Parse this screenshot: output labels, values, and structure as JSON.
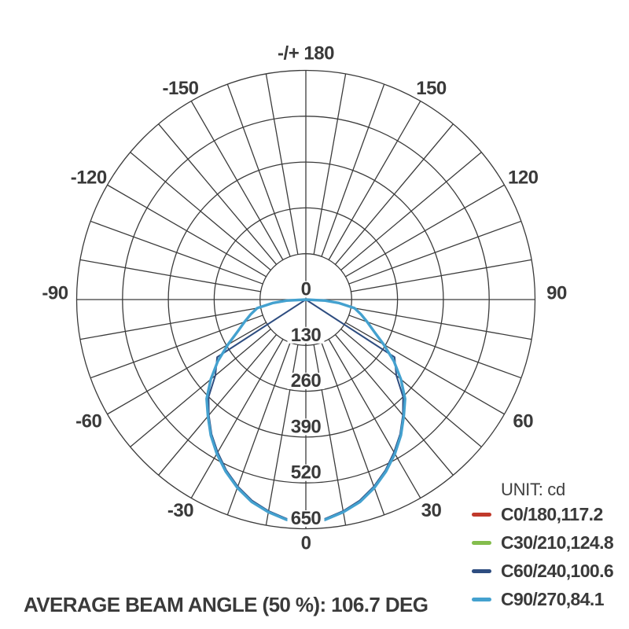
{
  "colors": {
    "background": "#ffffff",
    "grid": "#3b3b3b",
    "text": "#3a3a3a"
  },
  "chart_data": {
    "type": "line",
    "subtype": "polar-photometric-luminous-intensity",
    "top_label": "-/+ 180",
    "unit_label": "UNIT: cd",
    "footer": "AVERAGE BEAM ANGLE (50 %): 106.7 DEG",
    "angle_unit": "deg",
    "angle_tick_step": 10,
    "angle_label_step": 30,
    "angle_labels": [
      {
        "angle": -150,
        "label": "-150"
      },
      {
        "angle": -120,
        "label": "-120"
      },
      {
        "angle": -90,
        "label": "-90"
      },
      {
        "angle": -60,
        "label": "-60"
      },
      {
        "angle": -30,
        "label": "-30"
      },
      {
        "angle": 0,
        "label": "0"
      },
      {
        "angle": 30,
        "label": "30"
      },
      {
        "angle": 60,
        "label": "60"
      },
      {
        "angle": 90,
        "label": "90"
      },
      {
        "angle": 120,
        "label": "120"
      },
      {
        "angle": 150,
        "label": "150"
      }
    ],
    "radial_ticks": [
      {
        "value": 0,
        "label": "0"
      },
      {
        "value": 130,
        "label": "130"
      },
      {
        "value": 260,
        "label": "260"
      },
      {
        "value": 390,
        "label": "390"
      },
      {
        "value": 520,
        "label": "520"
      },
      {
        "value": 650,
        "label": "650"
      }
    ],
    "radial_max": 650,
    "series": [
      {
        "name": "C0/180",
        "label": "C0/180,117.2",
        "beam_angle_deg": 117.2,
        "color": "#c0392b",
        "stroke_width": 2,
        "symmetric": true,
        "points": [
          [
            0,
            632
          ],
          [
            5,
            627
          ],
          [
            10,
            612
          ],
          [
            15,
            594
          ],
          [
            20,
            568
          ],
          [
            25,
            538
          ],
          [
            30,
            505
          ],
          [
            35,
            470
          ],
          [
            40,
            432
          ],
          [
            45,
            398
          ],
          [
            50,
            352
          ],
          [
            55,
            305
          ],
          [
            60,
            255
          ],
          [
            65,
            213
          ],
          [
            70,
            185
          ],
          [
            75,
            162
          ],
          [
            80,
            140
          ],
          [
            84,
            95
          ],
          [
            87,
            55
          ],
          [
            90,
            0
          ]
        ]
      },
      {
        "name": "C30/210",
        "label": "C30/210,124.8",
        "beam_angle_deg": 124.8,
        "color": "#84bd4d",
        "stroke_width": 2,
        "symmetric": true,
        "points": [
          [
            0,
            632
          ],
          [
            5,
            627
          ],
          [
            10,
            612
          ],
          [
            15,
            594
          ],
          [
            20,
            568
          ],
          [
            25,
            538
          ],
          [
            30,
            505
          ],
          [
            35,
            470
          ],
          [
            40,
            432
          ],
          [
            45,
            398
          ],
          [
            50,
            352
          ],
          [
            55,
            305
          ],
          [
            60,
            255
          ],
          [
            65,
            213
          ],
          [
            70,
            185
          ],
          [
            75,
            162
          ],
          [
            80,
            140
          ],
          [
            84,
            95
          ],
          [
            87,
            55
          ],
          [
            90,
            0
          ]
        ]
      },
      {
        "name": "C60/240",
        "label": "C60/240,100.6",
        "beam_angle_deg": 100.6,
        "color": "#2e4d80",
        "stroke_width": 2,
        "symmetric": true,
        "points": [
          [
            0,
            630
          ],
          [
            5,
            624
          ],
          [
            10,
            609
          ],
          [
            15,
            590
          ],
          [
            20,
            564
          ],
          [
            25,
            534
          ],
          [
            30,
            500
          ],
          [
            35,
            466
          ],
          [
            40,
            428
          ],
          [
            45,
            390
          ],
          [
            50,
            335
          ],
          [
            57,
            300
          ],
          [
            90,
            0
          ]
        ]
      },
      {
        "name": "C90/270",
        "label": "C90/270,84.1",
        "beam_angle_deg": 84.1,
        "color": "#44a1cf",
        "stroke_width": 3.4,
        "symmetric": true,
        "points": [
          [
            0,
            632
          ],
          [
            5,
            627
          ],
          [
            10,
            612
          ],
          [
            15,
            594
          ],
          [
            20,
            568
          ],
          [
            25,
            538
          ],
          [
            30,
            505
          ],
          [
            35,
            470
          ],
          [
            40,
            432
          ],
          [
            45,
            398
          ],
          [
            50,
            352
          ],
          [
            55,
            305
          ],
          [
            60,
            255
          ],
          [
            65,
            213
          ],
          [
            70,
            185
          ],
          [
            75,
            162
          ],
          [
            80,
            140
          ],
          [
            84,
            95
          ],
          [
            87,
            55
          ],
          [
            90,
            0
          ]
        ]
      }
    ]
  }
}
